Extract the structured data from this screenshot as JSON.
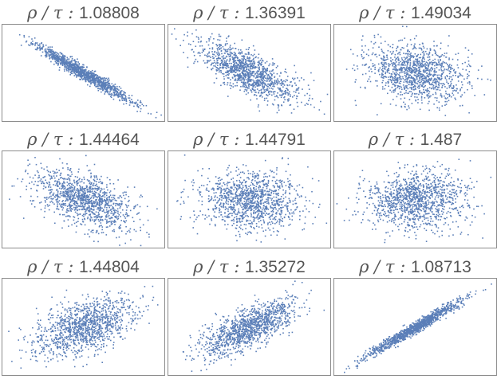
{
  "chart_data": [
    {
      "type": "scatter",
      "title_prefix": "ρ / τ : ",
      "title_value": "1.08808",
      "corr": -0.97
    },
    {
      "type": "scatter",
      "title_prefix": "ρ / τ : ",
      "title_value": "1.36391",
      "corr": -0.72
    },
    {
      "type": "scatter",
      "title_prefix": "ρ / τ : ",
      "title_value": "1.49034",
      "corr": -0.2
    },
    {
      "type": "scatter",
      "title_prefix": "ρ / τ : ",
      "title_value": "1.44464",
      "corr": -0.5
    },
    {
      "type": "scatter",
      "title_prefix": "ρ / τ : ",
      "title_value": "1.44791",
      "corr": -0.05
    },
    {
      "type": "scatter",
      "title_prefix": "ρ / τ : ",
      "title_value": "1.487",
      "corr": 0.05
    },
    {
      "type": "scatter",
      "title_prefix": "ρ / τ : ",
      "title_value": "1.44804",
      "corr": 0.48
    },
    {
      "type": "scatter",
      "title_prefix": "ρ / τ : ",
      "title_value": "1.35272",
      "corr": 0.72
    },
    {
      "type": "scatter",
      "title_prefix": "ρ / τ : ",
      "title_value": "1.08713",
      "corr": 0.98
    }
  ],
  "colors": {
    "points": "#5b7fb8",
    "frame": "#8c8c8c",
    "title": "#555555"
  }
}
